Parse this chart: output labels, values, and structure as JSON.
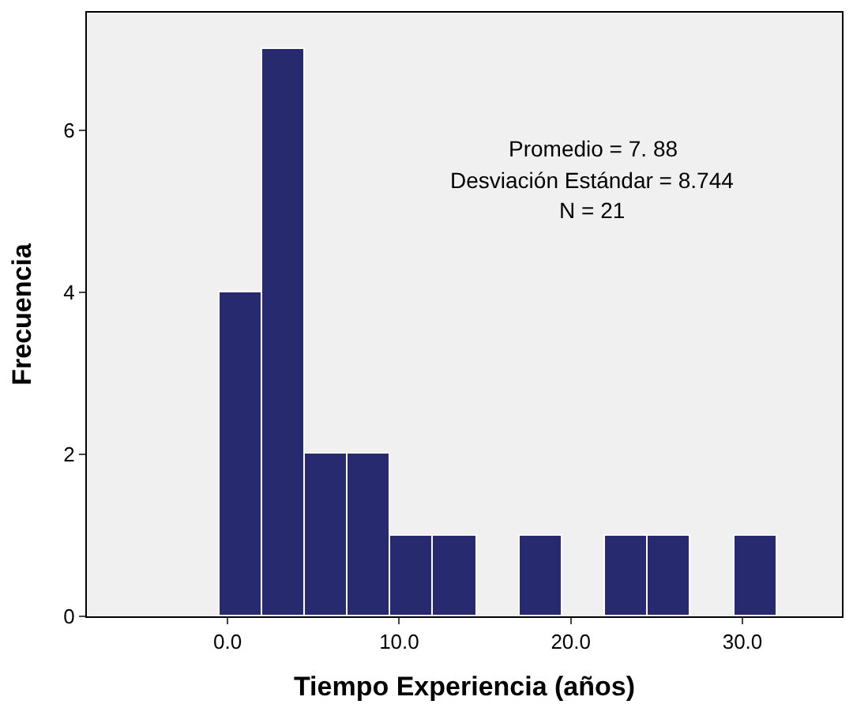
{
  "chart_data": {
    "type": "histogram",
    "xlabel": "Tiempo Experiencia (años)",
    "ylabel": "Frecuencia",
    "bins": [
      -0.5,
      2,
      4.5,
      7,
      9.5,
      12,
      14.5,
      17,
      19.5,
      22,
      24.5,
      27,
      29.5,
      32
    ],
    "values": [
      4,
      7,
      2,
      2,
      1,
      1,
      0,
      1,
      0,
      1,
      1,
      0,
      1
    ],
    "color": "#272a6e",
    "xlim": [
      -8.2,
      35.8
    ],
    "xticks": [
      {
        "value": 0,
        "label": "0.0"
      },
      {
        "value": 10,
        "label": "10.0"
      },
      {
        "value": 20,
        "label": "20.0"
      },
      {
        "value": 30,
        "label": "30.0"
      }
    ],
    "ylim": [
      0,
      7.45
    ],
    "yticks": [
      0,
      2,
      4,
      6
    ],
    "annotations": [
      "Promedio = 7. 88",
      "Desviación Estándar = 8.744",
      "N = 21"
    ]
  }
}
